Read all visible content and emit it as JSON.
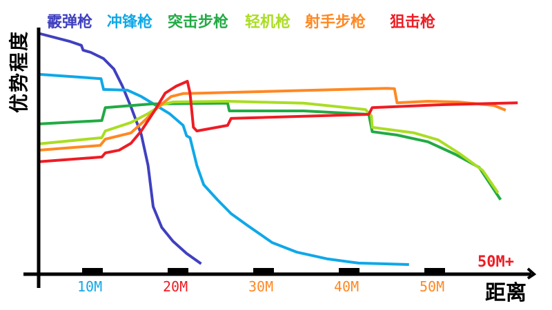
{
  "chart_data": {
    "type": "line",
    "title": "",
    "xlabel": "距离",
    "ylabel": "优势程度",
    "xlim": [
      3.6,
      61
    ],
    "ylim": [
      0,
      100
    ],
    "grid": false,
    "legend_position": "top",
    "x_ticks": [
      {
        "value": 10,
        "label": "10M",
        "color": "#0FA8E8"
      },
      {
        "value": 20,
        "label": "20M",
        "color": "#EE1C24"
      },
      {
        "value": 30,
        "label": "30M",
        "color": "#FF8822"
      },
      {
        "value": 40,
        "label": "40M",
        "color": "#FF8822"
      },
      {
        "value": 50,
        "label": "50M",
        "color": "#FF8822"
      }
    ],
    "x_end_label": {
      "label": "50M+",
      "color": "#EE1C24"
    },
    "series": [
      {
        "name": "霰弹枪",
        "color": "#4040C0",
        "points": [
          [
            3.6,
            100
          ],
          [
            7.3,
            96.6
          ],
          [
            8.7,
            94.9
          ],
          [
            8.9,
            92.9
          ],
          [
            9.8,
            92
          ],
          [
            11.3,
            89.4
          ],
          [
            12.5,
            85.1
          ],
          [
            13.5,
            78
          ],
          [
            14.5,
            69.4
          ],
          [
            15.7,
            58
          ],
          [
            16.5,
            45.1
          ],
          [
            17.1,
            28
          ],
          [
            18.1,
            19.4
          ],
          [
            19.4,
            13.7
          ],
          [
            21,
            8.6
          ],
          [
            22.7,
            4.3
          ]
        ]
      },
      {
        "name": "冲锋枪",
        "color": "#0FA8E8",
        "points": [
          [
            3.6,
            82.9
          ],
          [
            11,
            81.1
          ],
          [
            11.3,
            76.6
          ],
          [
            14.1,
            76.3
          ],
          [
            15.7,
            73.7
          ],
          [
            17.3,
            70.3
          ],
          [
            19,
            66.6
          ],
          [
            20.6,
            61.7
          ],
          [
            21,
            57.4
          ],
          [
            21.4,
            56.6
          ],
          [
            22.2,
            45.1
          ],
          [
            23,
            37.1
          ],
          [
            24.6,
            30.9
          ],
          [
            26.2,
            25.1
          ],
          [
            28.2,
            20
          ],
          [
            31,
            13.1
          ],
          [
            33.9,
            9.1
          ],
          [
            37.5,
            6.3
          ],
          [
            41.1,
            4.6
          ],
          [
            47,
            4
          ]
        ]
      },
      {
        "name": "突击步枪",
        "color": "#22AA44",
        "points": [
          [
            3.6,
            62.3
          ],
          [
            11.1,
            63.7
          ],
          [
            11.5,
            69.1
          ],
          [
            16.9,
            70.6
          ],
          [
            25.8,
            70.9
          ],
          [
            26,
            67.7
          ],
          [
            34.7,
            67.7
          ],
          [
            42.3,
            66.3
          ],
          [
            42.7,
            59.1
          ],
          [
            45.6,
            57.7
          ],
          [
            49.2,
            54.9
          ],
          [
            52.4,
            49.7
          ],
          [
            55.2,
            44.3
          ],
          [
            57.7,
            30.9
          ]
        ]
      },
      {
        "name": "轻机枪",
        "color": "#AADD22",
        "points": [
          [
            3.6,
            54
          ],
          [
            11.1,
            56.6
          ],
          [
            11.5,
            59.4
          ],
          [
            14.5,
            62.9
          ],
          [
            16.5,
            66.6
          ],
          [
            18.1,
            70.3
          ],
          [
            19.4,
            71.4
          ],
          [
            25.8,
            71.7
          ],
          [
            34.7,
            70.9
          ],
          [
            41.9,
            68.3
          ],
          [
            42.6,
            65.7
          ],
          [
            42.7,
            60.9
          ],
          [
            47.6,
            58.6
          ],
          [
            50.4,
            55.7
          ],
          [
            52.8,
            50.3
          ],
          [
            55.6,
            43.1
          ],
          [
            57.4,
            33.7
          ]
        ]
      },
      {
        "name": "射手步枪",
        "color": "#FF8822",
        "points": [
          [
            3.6,
            51.4
          ],
          [
            10.9,
            53.4
          ],
          [
            11.5,
            56
          ],
          [
            14.5,
            58.6
          ],
          [
            16.1,
            63.7
          ],
          [
            17.7,
            69.4
          ],
          [
            19.2,
            73.7
          ],
          [
            20.6,
            74.9
          ],
          [
            22.6,
            75.1
          ],
          [
            44.4,
            77.1
          ],
          [
            45.3,
            76.9
          ],
          [
            45.6,
            71.1
          ],
          [
            49.2,
            71.7
          ],
          [
            52.8,
            71.4
          ],
          [
            56.9,
            70
          ],
          [
            58.3,
            68
          ]
        ]
      },
      {
        "name": "狙击枪",
        "color": "#EE1C24",
        "points": [
          [
            3.6,
            46.6
          ],
          [
            11.1,
            48.6
          ],
          [
            11.5,
            50.3
          ],
          [
            13.1,
            51.4
          ],
          [
            14.5,
            54.3
          ],
          [
            15.7,
            59.4
          ],
          [
            17.3,
            68
          ],
          [
            18.5,
            75.1
          ],
          [
            19.8,
            78
          ],
          [
            21.1,
            80
          ],
          [
            21.4,
            75.1
          ],
          [
            21.8,
            60.9
          ],
          [
            22.2,
            59.4
          ],
          [
            25.8,
            61.7
          ],
          [
            26.2,
            64.6
          ],
          [
            42.3,
            66.3
          ],
          [
            42.7,
            69.1
          ],
          [
            50.8,
            70.3
          ],
          [
            59.7,
            71.1
          ]
        ]
      }
    ]
  }
}
